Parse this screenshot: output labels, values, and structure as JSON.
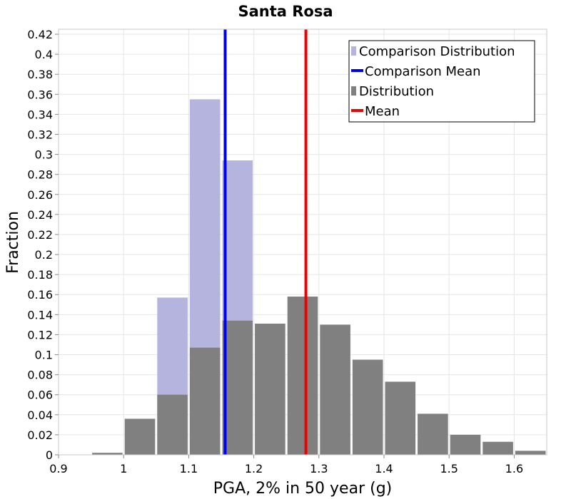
{
  "chart_data": {
    "type": "bar",
    "title": "Santa Rosa",
    "xlabel": "PGA, 2% in 50 year (g)",
    "ylabel": "Fraction",
    "xlim": [
      0.9,
      1.65
    ],
    "ylim": [
      0,
      0.425
    ],
    "bin_width": 0.05,
    "grid": true,
    "legend_position": "top-right",
    "x_ticks": [
      "0.9",
      "1",
      "1.1",
      "1.2",
      "1.3",
      "1.4",
      "1.5",
      "1.6"
    ],
    "y_ticks": [
      "0",
      "0.02",
      "0.04",
      "0.06",
      "0.08",
      "0.1",
      "0.12",
      "0.14",
      "0.16",
      "0.18",
      "0.2",
      "0.22",
      "0.24",
      "0.26",
      "0.28",
      "0.3",
      "0.32",
      "0.34",
      "0.36",
      "0.38",
      "0.4",
      "0.42"
    ],
    "series": [
      {
        "name": "Comparison Distribution",
        "kind": "histogram",
        "color": "#b4b4de",
        "bin_centers": [
          1.075,
          1.125,
          1.175
        ],
        "values": [
          0.157,
          0.355,
          0.294
        ]
      },
      {
        "name": "Comparison Mean",
        "kind": "vline",
        "color": "#0000ee",
        "x": 1.156
      },
      {
        "name": "Distribution",
        "kind": "histogram",
        "color": "#808080",
        "bin_centers": [
          0.925,
          0.975,
          1.025,
          1.075,
          1.125,
          1.175,
          1.225,
          1.275,
          1.325,
          1.375,
          1.425,
          1.475,
          1.525,
          1.575,
          1.625
        ],
        "values": [
          0.0,
          0.002,
          0.036,
          0.06,
          0.107,
          0.134,
          0.131,
          0.158,
          0.13,
          0.095,
          0.073,
          0.041,
          0.02,
          0.013,
          0.004
        ]
      },
      {
        "name": "Mean",
        "kind": "vline",
        "color": "#ee0000",
        "x": 1.28
      }
    ]
  }
}
